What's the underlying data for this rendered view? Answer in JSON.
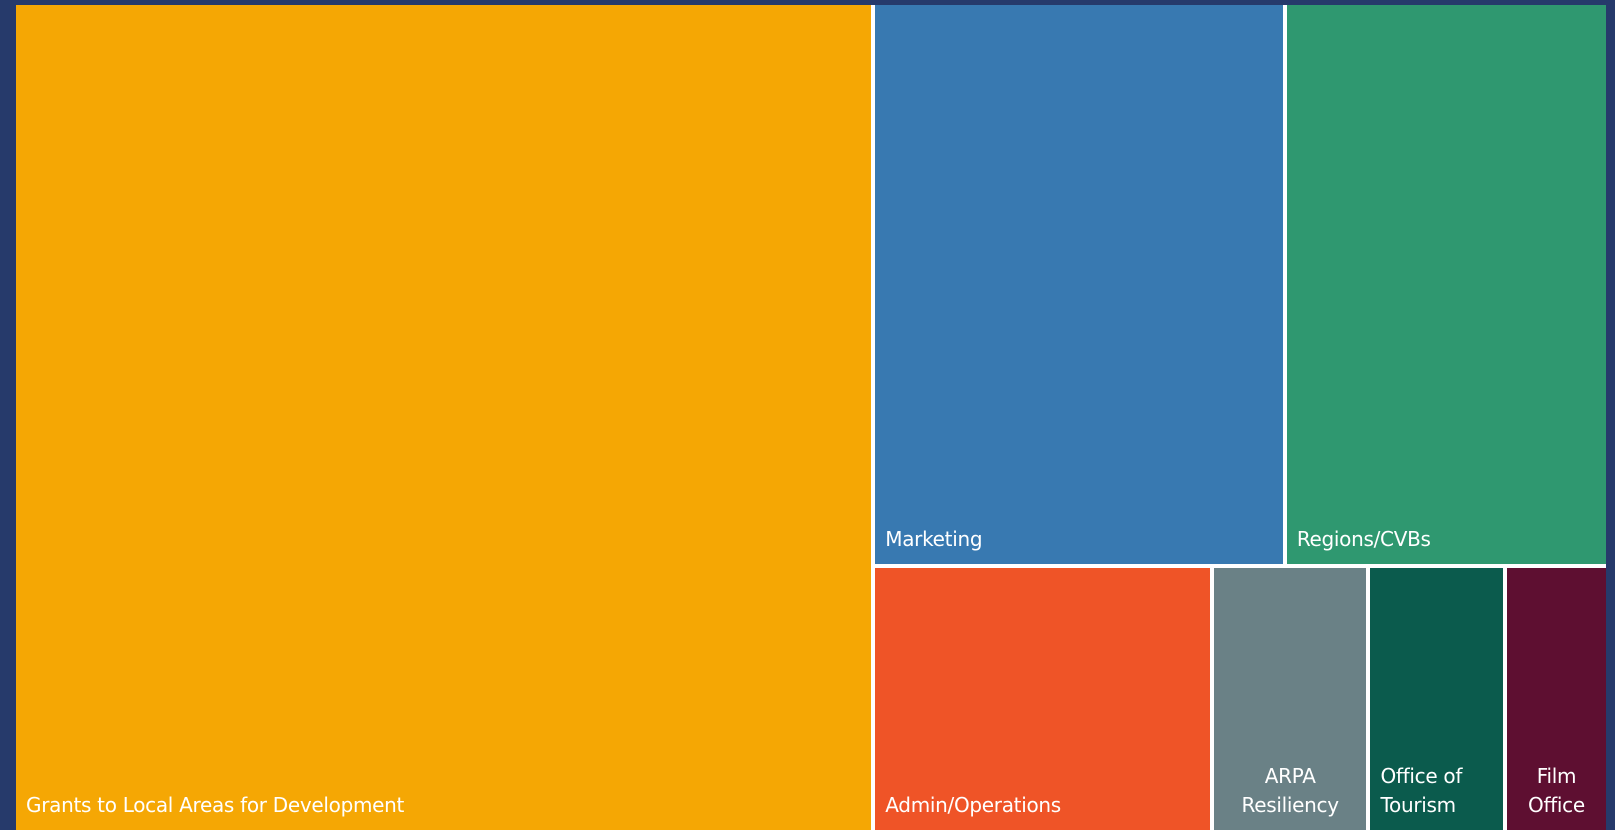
{
  "chart_data": {
    "type": "treemap",
    "title": "",
    "items": [
      {
        "label": "Grants to Local Areas for Development",
        "value": 53.0,
        "color": "#f5a704"
      },
      {
        "label": "Marketing",
        "value": 17.3,
        "color": "#3879b1"
      },
      {
        "label": "Regions/CVBs",
        "value": 13.5,
        "color": "#2f9870"
      },
      {
        "label": "Admin/Operations",
        "value": 6.7,
        "color": "#ef5427"
      },
      {
        "label": "ARPA\nResiliency",
        "value": 3.1,
        "color": "#6a8186"
      },
      {
        "label": "Office of\nTourism",
        "value": 2.7,
        "color": "#0b5b4d"
      },
      {
        "label": "Film\nOffice",
        "value": 2.0,
        "color": "#5e0f31"
      }
    ]
  }
}
